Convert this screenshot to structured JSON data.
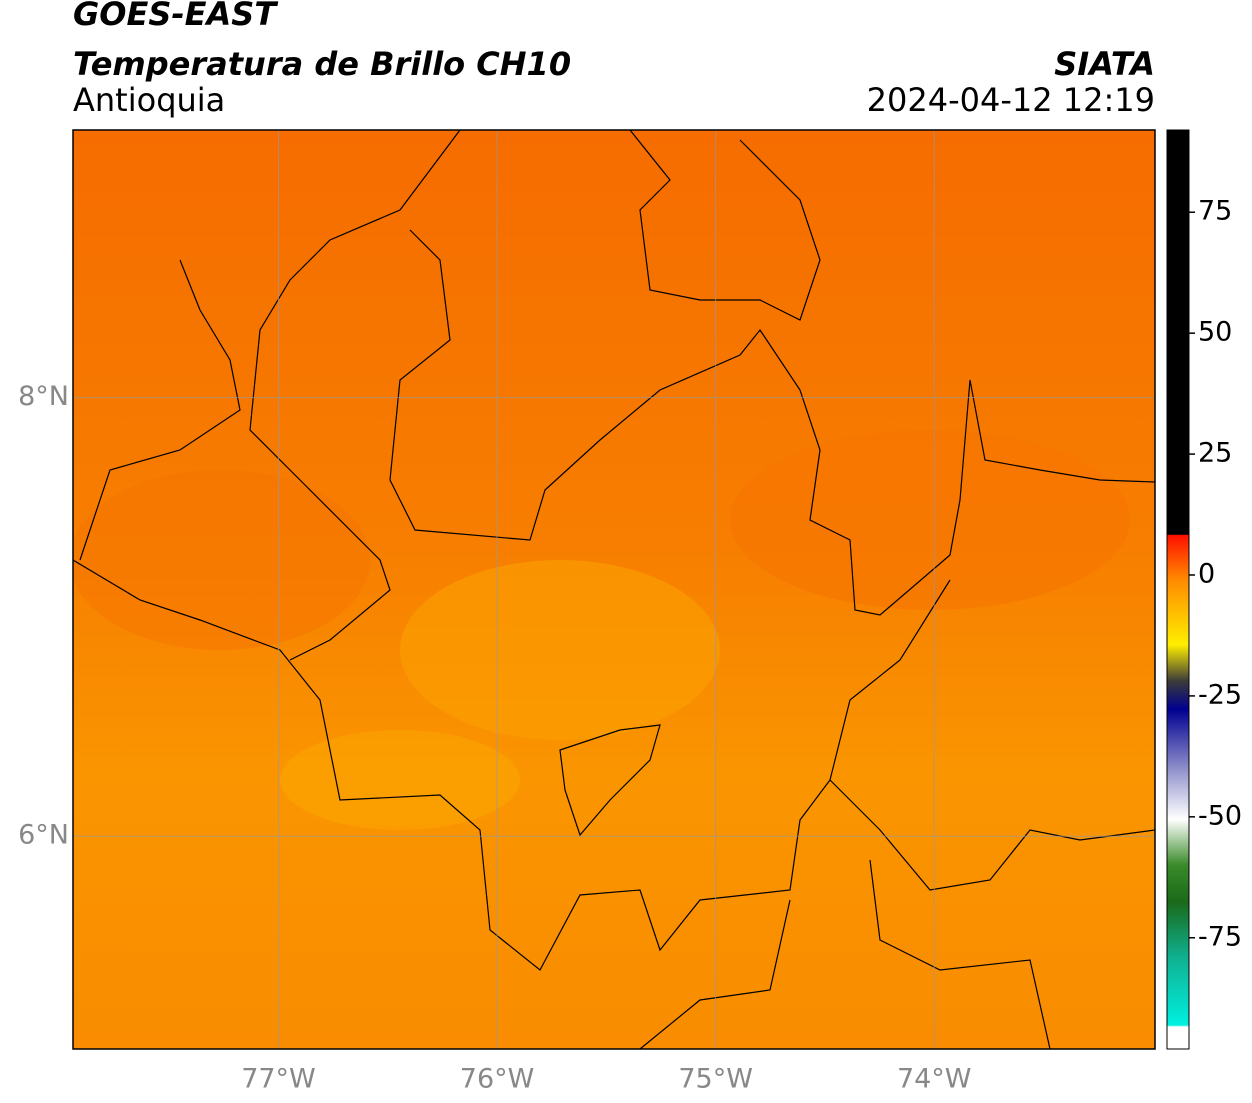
{
  "header": {
    "satellite": "GOES-EAST",
    "product": "Temperatura de Brillo CH10",
    "region": "Antioquia",
    "source": "SIATA",
    "datetime": "2024-04-12 12:19"
  },
  "map": {
    "lonlim": [
      -77.94,
      -72.99
    ],
    "latlim": [
      5.03,
      9.22
    ],
    "lon_ticks": [
      {
        "value": -77,
        "label": "77°W"
      },
      {
        "value": -76,
        "label": "76°W"
      },
      {
        "value": -75,
        "label": "75°W"
      },
      {
        "value": -74,
        "label": "74°W"
      }
    ],
    "lat_ticks": [
      {
        "value": 8,
        "label": "8°N"
      },
      {
        "value": 6,
        "label": "6°N"
      }
    ]
  },
  "colorbar": {
    "lim": [
      -98,
      92
    ],
    "ticks": [
      75,
      50,
      25,
      0,
      -25,
      -50,
      -75
    ]
  }
}
